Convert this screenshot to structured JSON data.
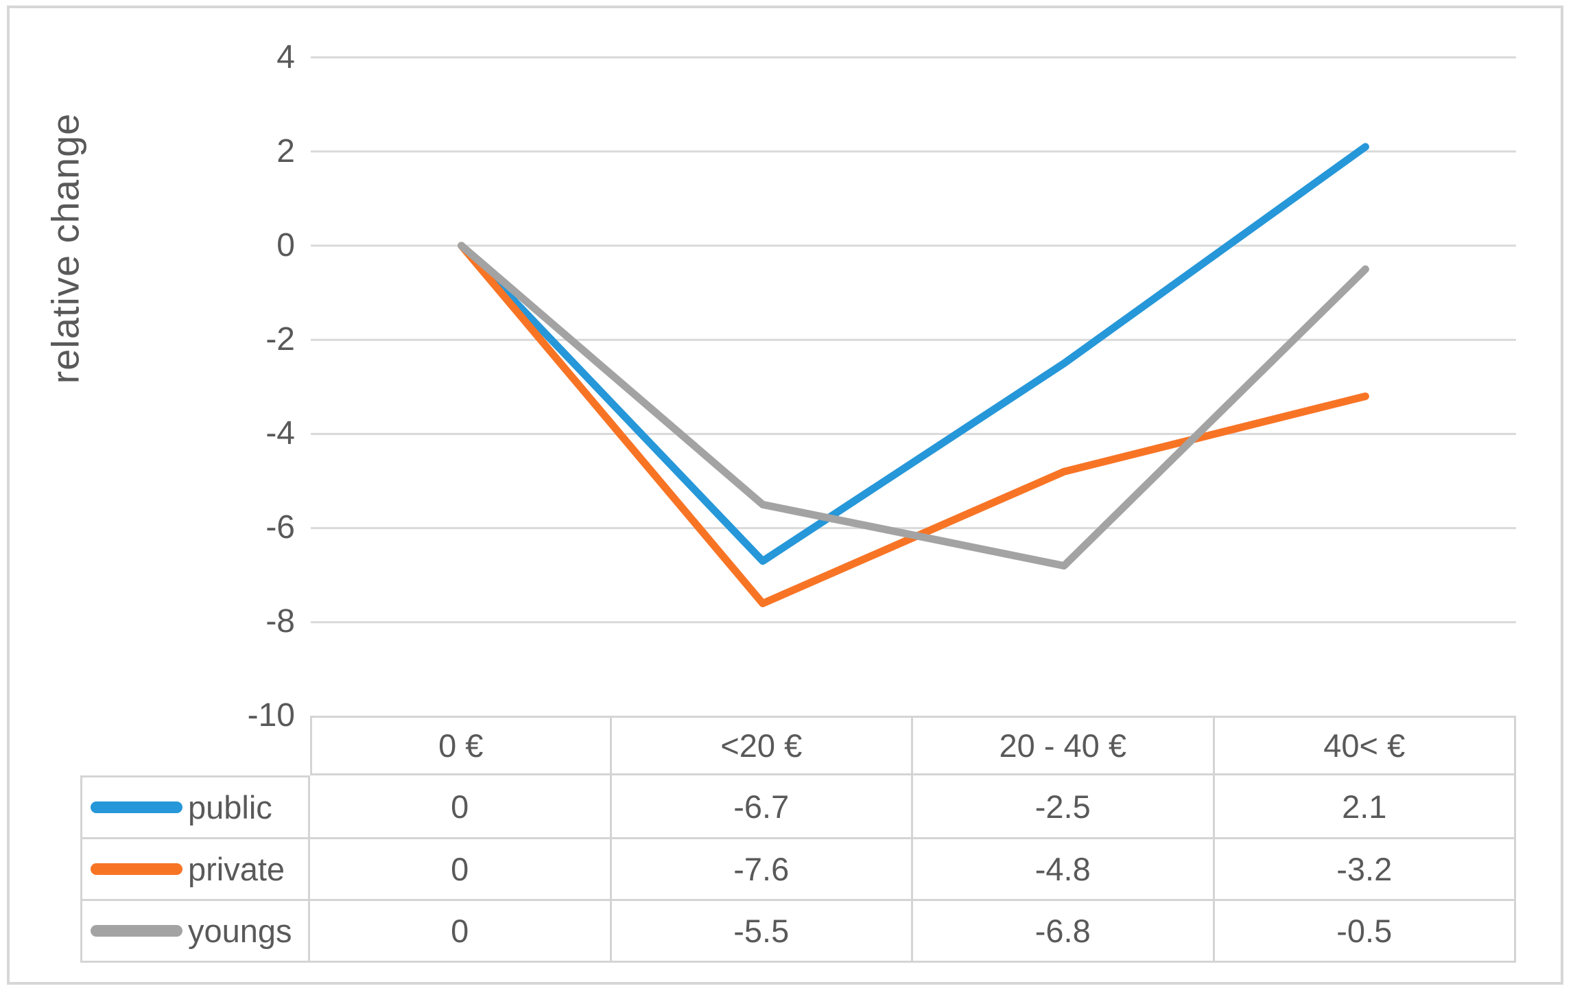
{
  "chart_data": {
    "type": "line",
    "title": "",
    "categories": [
      "0 €",
      "<20 €",
      "20 - 40 €",
      "40< €"
    ],
    "series": [
      {
        "name": "public",
        "color": "#2697D8",
        "values": [
          0,
          -6.7,
          -2.5,
          2.1
        ]
      },
      {
        "name": "private",
        "color": "#F87425",
        "values": [
          0,
          -7.6,
          -4.8,
          -3.2
        ]
      },
      {
        "name": "youngs",
        "color": "#A3A3A3",
        "values": [
          0,
          -5.5,
          -6.8,
          -0.5
        ]
      }
    ],
    "xlabel": "",
    "ylabel": "relative change",
    "ylim": [
      -10,
      4
    ],
    "yticks": [
      4,
      2,
      0,
      -2,
      -4,
      -6,
      -8,
      -10
    ],
    "grid": true,
    "gridline_color": "#D9D9D9",
    "legend_position": "data-table-left-column"
  },
  "y_axis": {
    "title": "relative change",
    "tick_labels": [
      "4",
      "2",
      "0",
      "-2",
      "-4",
      "-6",
      "-8",
      "-10"
    ]
  },
  "table": {
    "col_headers": [
      "0 €",
      "<20 €",
      "20 - 40 €",
      "40< €"
    ],
    "rows": [
      {
        "label": "public",
        "cells": [
          "0",
          "-6.7",
          "-2.5",
          "2.1"
        ]
      },
      {
        "label": "private",
        "cells": [
          "0",
          "-7.6",
          "-4.8",
          "-3.2"
        ]
      },
      {
        "label": "youngs",
        "cells": [
          "0",
          "-5.5",
          "-6.8",
          "-0.5"
        ]
      }
    ]
  },
  "colors": {
    "public": "#2697D8",
    "private": "#F87425",
    "youngs": "#A3A3A3",
    "gridline": "#D9D9D9",
    "text": "#595959",
    "border": "#D4D4D4"
  }
}
